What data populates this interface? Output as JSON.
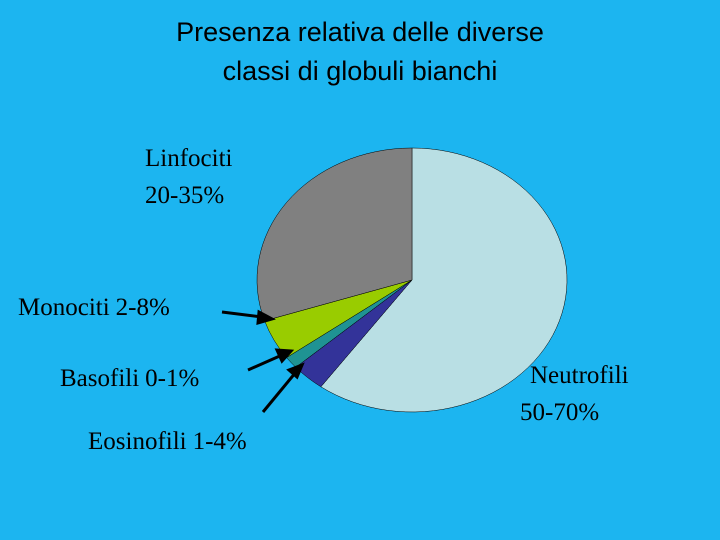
{
  "chart_data": {
    "type": "pie",
    "title": [
      "Presenza relativa delle diverse",
      "classi di globuli bianchi"
    ],
    "categories": [
      "Neutrofili",
      "Eosinofili",
      "Basofili",
      "Monociti",
      "Linfociti"
    ],
    "range_labels": [
      "50-70%",
      "1-4%",
      "0-1%",
      "2-8%",
      "20-35%"
    ],
    "values": [
      60,
      3.5,
      1.5,
      5,
      30
    ],
    "colors": [
      "#b9dfe4",
      "#333399",
      "#1f9393",
      "#99cc00",
      "#808080"
    ]
  }
}
